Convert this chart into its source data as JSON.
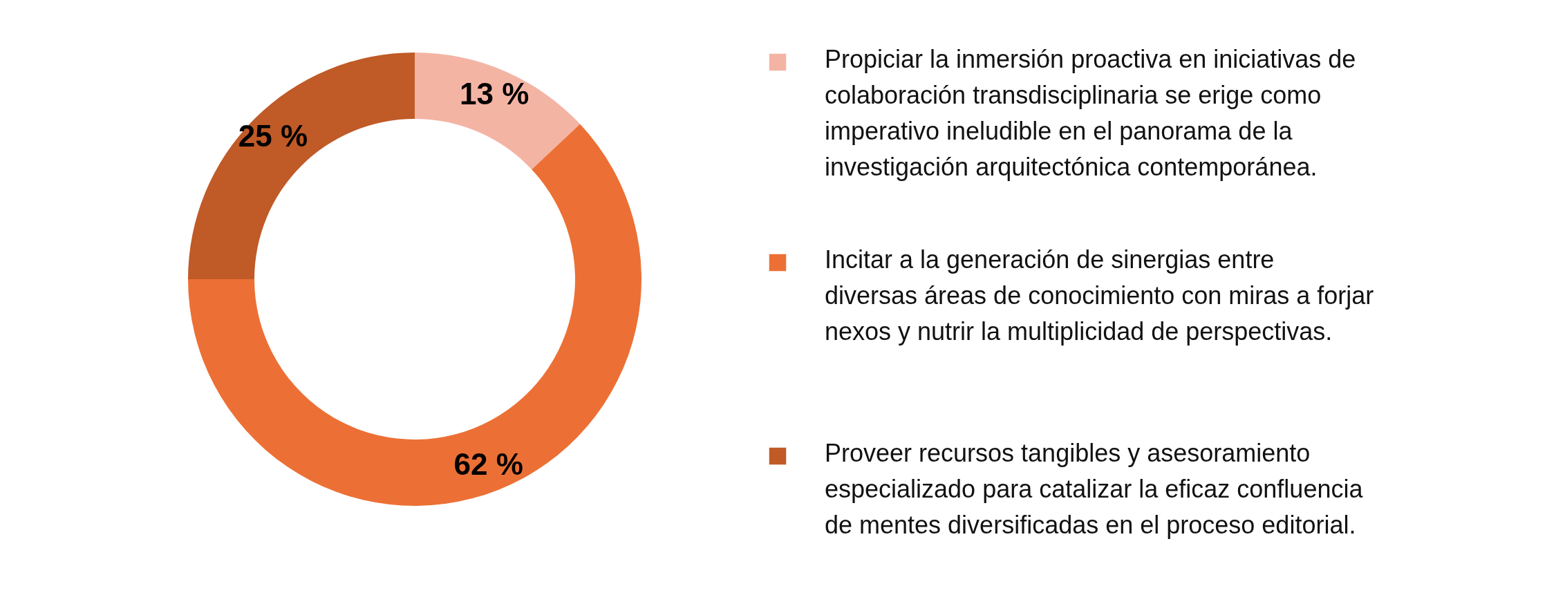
{
  "chart_data": {
    "type": "donut",
    "categories": [
      "Propiciar la inmersión proactiva en iniciativas de colaboración transdisciplinaria se erige como imperativo ineludible en el panorama de la investigación arquitectónica contemporánea.",
      "Incitar a la generación de sinergias entre diversas áreas de conocimiento con miras a forjar nexos y nutrir la multiplicidad de perspectivas.",
      "Proveer recursos tangibles y asesoramiento especializado para catalizar la eficaz confluencia de mentes diversificadas en el proceso editorial."
    ],
    "values": [
      13,
      62,
      25
    ],
    "colors": [
      "#f4b4a4",
      "#ec7035",
      "#c05a27"
    ],
    "value_labels": [
      "13 %",
      "62 %",
      "25 %"
    ],
    "legend": "right"
  }
}
